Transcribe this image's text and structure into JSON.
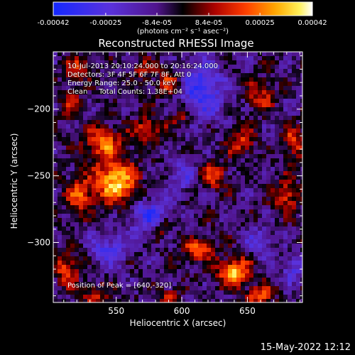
{
  "chart_data": {
    "type": "heatmap",
    "title": "Reconstructed RHESSI Image",
    "xlabel": "Heliocentric X (arcsec)",
    "ylabel": "Heliocentric Y (arcsec)",
    "xlim": [
      502,
      692
    ],
    "ylim": [
      -345,
      -157
    ],
    "x_ticks": [
      550,
      600,
      650
    ],
    "y_ticks": [
      -200,
      -250,
      -300
    ],
    "colorbar": {
      "min": -0.00042,
      "max": 0.00042,
      "tick_values": [
        -0.00042,
        -0.00025,
        -8.4e-05,
        8.4e-05,
        0.00025,
        0.00042
      ],
      "tick_labels": [
        "-0.00042",
        "-0.00025",
        "-8.4e-05",
        "8.4e-05",
        "0.00025",
        "0.00042"
      ],
      "units": "(photons cm⁻² s⁻¹ asec⁻²)"
    },
    "annotations": [
      "10-Jul-2013 20:10:24.000 to 20:16:24.000",
      "Detectors: 3F 4F 5F 6F 7F 8F, Att 0",
      "Energy Range: 25.0 - 50.0 keV",
      "Clean     Total Counts: 1.38E+04"
    ],
    "peak_label": "Position of Peak = [640,-320]",
    "peak": [
      640,
      -320
    ],
    "hotspots": [
      {
        "x": 550,
        "y": -255,
        "sx": 16,
        "sy": 16,
        "a": 1.0
      },
      {
        "x": 540,
        "y": -225,
        "sx": 14,
        "sy": 12,
        "a": 0.7
      },
      {
        "x": 522,
        "y": -265,
        "sx": 10,
        "sy": 14,
        "a": 0.6
      },
      {
        "x": 575,
        "y": -215,
        "sx": 12,
        "sy": 9,
        "a": 0.55
      },
      {
        "x": 515,
        "y": -195,
        "sx": 8,
        "sy": 10,
        "a": 0.45
      },
      {
        "x": 520,
        "y": -170,
        "sx": 10,
        "sy": 8,
        "a": 0.55
      },
      {
        "x": 590,
        "y": -180,
        "sx": 10,
        "sy": 10,
        "a": 0.55
      },
      {
        "x": 600,
        "y": -205,
        "sx": 8,
        "sy": 8,
        "a": 0.45
      },
      {
        "x": 570,
        "y": -170,
        "sx": 8,
        "sy": 8,
        "a": 0.4
      },
      {
        "x": 660,
        "y": -190,
        "sx": 10,
        "sy": 12,
        "a": 0.5
      },
      {
        "x": 645,
        "y": -225,
        "sx": 10,
        "sy": 10,
        "a": 0.55
      },
      {
        "x": 625,
        "y": -250,
        "sx": 10,
        "sy": 10,
        "a": 0.55
      },
      {
        "x": 685,
        "y": -225,
        "sx": 8,
        "sy": 12,
        "a": 0.55
      },
      {
        "x": 680,
        "y": -265,
        "sx": 10,
        "sy": 12,
        "a": 0.55
      },
      {
        "x": 640,
        "y": -322,
        "sx": 12,
        "sy": 10,
        "a": 0.95
      },
      {
        "x": 612,
        "y": -305,
        "sx": 12,
        "sy": 8,
        "a": 0.7
      },
      {
        "x": 660,
        "y": -340,
        "sx": 10,
        "sy": 8,
        "a": 0.6
      },
      {
        "x": 512,
        "y": -320,
        "sx": 10,
        "sy": 14,
        "a": 0.55
      },
      {
        "x": 585,
        "y": -290,
        "sx": 8,
        "sy": 8,
        "a": 0.4
      },
      {
        "x": 535,
        "y": -340,
        "sx": 10,
        "sy": 8,
        "a": 0.45
      },
      {
        "x": 590,
        "y": -340,
        "sx": 8,
        "sy": 6,
        "a": 0.4
      }
    ],
    "coldspots": [
      {
        "x": 615,
        "y": -185,
        "sx": 18,
        "sy": 22,
        "a": 0.6
      },
      {
        "x": 575,
        "y": -280,
        "sx": 16,
        "sy": 14,
        "a": 0.55
      },
      {
        "x": 545,
        "y": -305,
        "sx": 14,
        "sy": 12,
        "a": 0.5
      },
      {
        "x": 660,
        "y": -300,
        "sx": 10,
        "sy": 10,
        "a": 0.45
      },
      {
        "x": 600,
        "y": -250,
        "sx": 10,
        "sy": 12,
        "a": 0.4
      },
      {
        "x": 685,
        "y": -320,
        "sx": 8,
        "sy": 10,
        "a": 0.4
      }
    ]
  },
  "timestamp": "15-May-2022 12:12"
}
